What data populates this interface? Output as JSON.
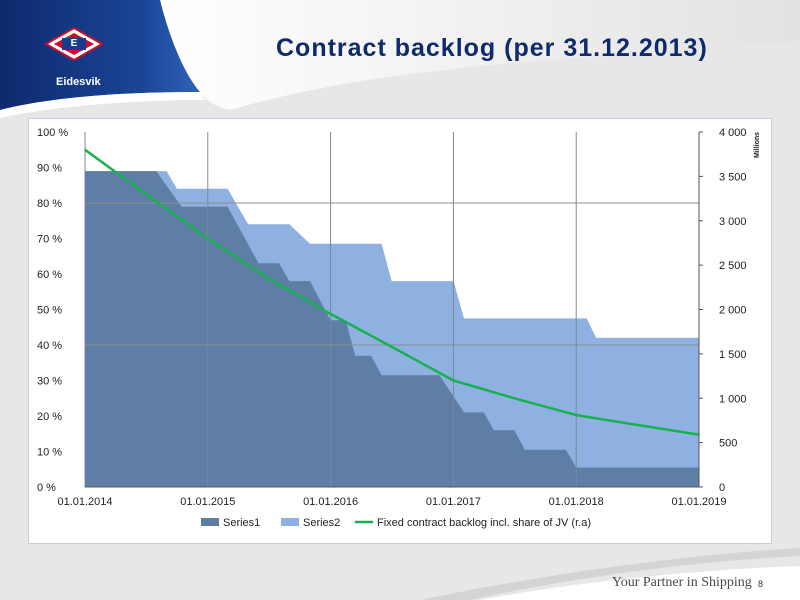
{
  "header": {
    "title": "Contract backlog (per 31.12.2013)",
    "logo_letter": "E",
    "logo_name": "Eidesvik"
  },
  "footer": {
    "tagline": "Your Partner in Shipping",
    "page_number": "8"
  },
  "colors": {
    "title": "#0f2a6b",
    "series1": "#5e7ea5",
    "series2": "#8eb1e1",
    "line": "#17b04f"
  },
  "chart_data": {
    "type": "area",
    "title": "",
    "x_tick_labels": [
      "01.01.2014",
      "01.01.2015",
      "01.01.2016",
      "01.01.2017",
      "01.01.2018",
      "01.01.2019"
    ],
    "xlim": [
      "2014-01-01",
      "2019-01-01"
    ],
    "y_left": {
      "min": 0,
      "max": 100,
      "tick_labels": [
        "0 %",
        "10 %",
        "20 %",
        "30 %",
        "40 %",
        "50 %",
        "60 %",
        "70 %",
        "80 %",
        "90 %",
        "100 %"
      ]
    },
    "y_right": {
      "min": 0,
      "max": 4000,
      "unit_label": "Millions",
      "tick_labels": [
        "0",
        "500",
        "1 000",
        "1 500",
        "2 000",
        "2 500",
        "3 000",
        "3 500",
        "4 000"
      ]
    },
    "grid": "vertical lines at year ticks; horizontal lines at 40 % and 80 %",
    "legend_position": "bottom",
    "series": [
      {
        "name": "Series1",
        "type": "area",
        "axis": "left",
        "points": [
          [
            "2014-01-01",
            89
          ],
          [
            "2014-08-01",
            89
          ],
          [
            "2014-10-15",
            79
          ],
          [
            "2015-03-01",
            79
          ],
          [
            "2015-06-01",
            63
          ],
          [
            "2015-08-01",
            63
          ],
          [
            "2015-09-01",
            58
          ],
          [
            "2015-11-01",
            58
          ],
          [
            "2016-01-01",
            47
          ],
          [
            "2016-02-15",
            47
          ],
          [
            "2016-03-15",
            37
          ],
          [
            "2016-05-01",
            37
          ],
          [
            "2016-06-01",
            31.5
          ],
          [
            "2016-11-20",
            31.5
          ],
          [
            "2017-02-01",
            21
          ],
          [
            "2017-04-01",
            21
          ],
          [
            "2017-05-01",
            16
          ],
          [
            "2017-07-01",
            16
          ],
          [
            "2017-08-01",
            10.5
          ],
          [
            "2017-12-01",
            10.5
          ],
          [
            "2018-01-01",
            5.5
          ],
          [
            "2018-12-31",
            5.5
          ]
        ]
      },
      {
        "name": "Series2",
        "type": "area",
        "axis": "left",
        "points": [
          [
            "2014-01-01",
            89
          ],
          [
            "2014-09-01",
            89
          ],
          [
            "2014-10-01",
            84
          ],
          [
            "2015-03-01",
            84
          ],
          [
            "2015-05-01",
            74
          ],
          [
            "2015-09-01",
            74
          ],
          [
            "2015-11-01",
            68.5
          ],
          [
            "2016-06-01",
            68.5
          ],
          [
            "2016-07-01",
            58
          ],
          [
            "2017-01-01",
            58
          ],
          [
            "2017-02-01",
            47.5
          ],
          [
            "2018-02-01",
            47.5
          ],
          [
            "2018-03-01",
            42
          ],
          [
            "2018-12-31",
            42
          ]
        ]
      },
      {
        "name": "Fixed contract backlog incl. share of JV (r.a)",
        "type": "line",
        "axis": "right",
        "points": [
          [
            "2014-01-01",
            3800
          ],
          [
            "2014-07-01",
            3300
          ],
          [
            "2015-01-01",
            2800
          ],
          [
            "2015-07-01",
            2350
          ],
          [
            "2016-01-01",
            1950
          ],
          [
            "2016-07-01",
            1580
          ],
          [
            "2017-01-01",
            1200
          ],
          [
            "2017-07-01",
            1000
          ],
          [
            "2018-01-01",
            810
          ],
          [
            "2018-07-01",
            700
          ],
          [
            "2018-12-31",
            590
          ]
        ]
      }
    ]
  }
}
